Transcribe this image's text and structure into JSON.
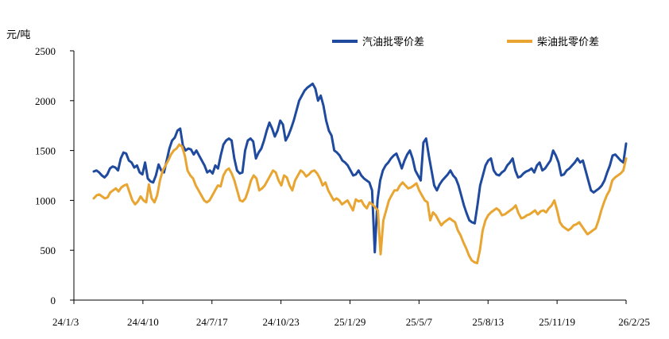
{
  "chart_data": {
    "type": "line",
    "unit_label": "元/吨",
    "y_ticks": [
      "0",
      "500",
      "1000",
      "1500",
      "2000",
      "2500"
    ],
    "ylim": [
      0,
      2500
    ],
    "x_ticks": [
      "24/1/3",
      "24/4/10",
      "24/7/17",
      "24/10/23",
      "25/1/29",
      "25/5/7",
      "25/8/13",
      "25/11/19",
      "26/2/25"
    ],
    "legend_position": "top-right",
    "grid": false,
    "series": [
      {
        "name": "汽油批零价差",
        "color": "#1F4A9E",
        "values": [
          1290,
          1300,
          1280,
          1250,
          1230,
          1260,
          1320,
          1340,
          1330,
          1300,
          1420,
          1480,
          1470,
          1400,
          1380,
          1330,
          1350,
          1280,
          1260,
          1380,
          1220,
          1190,
          1180,
          1250,
          1360,
          1300,
          1280,
          1400,
          1520,
          1600,
          1630,
          1700,
          1720,
          1550,
          1500,
          1520,
          1510,
          1460,
          1500,
          1450,
          1400,
          1350,
          1280,
          1300,
          1270,
          1350,
          1320,
          1450,
          1560,
          1600,
          1620,
          1600,
          1420,
          1300,
          1270,
          1280,
          1500,
          1600,
          1620,
          1590,
          1420,
          1480,
          1520,
          1600,
          1700,
          1780,
          1720,
          1640,
          1700,
          1800,
          1760,
          1600,
          1650,
          1720,
          1800,
          1900,
          2000,
          2050,
          2100,
          2130,
          2150,
          2170,
          2120,
          2000,
          2050,
          1950,
          1800,
          1700,
          1650,
          1500,
          1480,
          1450,
          1400,
          1380,
          1350,
          1300,
          1250,
          1260,
          1300,
          1250,
          1220,
          1200,
          1180,
          1100,
          480,
          1000,
          1200,
          1300,
          1350,
          1380,
          1420,
          1450,
          1470,
          1400,
          1320,
          1400,
          1460,
          1500,
          1420,
          1300,
          1250,
          1200,
          1580,
          1620,
          1450,
          1300,
          1150,
          1100,
          1160,
          1200,
          1230,
          1260,
          1300,
          1250,
          1220,
          1150,
          1050,
          950,
          870,
          800,
          780,
          770,
          950,
          1150,
          1250,
          1350,
          1400,
          1420,
          1300,
          1260,
          1250,
          1280,
          1300,
          1350,
          1380,
          1420,
          1300,
          1230,
          1240,
          1270,
          1290,
          1300,
          1320,
          1280,
          1350,
          1380,
          1300,
          1320,
          1360,
          1400,
          1500,
          1450,
          1380,
          1250,
          1260,
          1300,
          1320,
          1350,
          1380,
          1420,
          1380,
          1400,
          1300,
          1200,
          1100,
          1080,
          1100,
          1120,
          1150,
          1200,
          1280,
          1350,
          1450,
          1460,
          1430,
          1400,
          1380,
          1570
        ]
      },
      {
        "name": "柴油批零价差",
        "color": "#E8A532",
        "values": [
          1020,
          1050,
          1060,
          1040,
          1020,
          1030,
          1080,
          1100,
          1120,
          1090,
          1130,
          1150,
          1160,
          1080,
          1000,
          960,
          990,
          1040,
          1000,
          980,
          1160,
          1020,
          980,
          1050,
          1200,
          1300,
          1350,
          1400,
          1460,
          1500,
          1520,
          1560,
          1540,
          1450,
          1300,
          1250,
          1220,
          1150,
          1100,
          1050,
          1000,
          980,
          1000,
          1050,
          1100,
          1150,
          1140,
          1250,
          1300,
          1320,
          1270,
          1200,
          1100,
          1000,
          990,
          1020,
          1100,
          1200,
          1250,
          1220,
          1100,
          1120,
          1150,
          1200,
          1250,
          1300,
          1280,
          1200,
          1150,
          1250,
          1230,
          1150,
          1100,
          1200,
          1250,
          1300,
          1280,
          1240,
          1260,
          1290,
          1300,
          1270,
          1220,
          1150,
          1180,
          1100,
          1050,
          1000,
          1020,
          1000,
          960,
          980,
          1000,
          950,
          900,
          1010,
          990,
          1000,
          950,
          920,
          980,
          960,
          930,
          900,
          460,
          800,
          900,
          1000,
          1050,
          1100,
          1100,
          1150,
          1180,
          1150,
          1120,
          1130,
          1150,
          1170,
          1100,
          1050,
          1000,
          980,
          800,
          880,
          850,
          800,
          750,
          780,
          800,
          820,
          800,
          780,
          700,
          650,
          580,
          520,
          450,
          400,
          380,
          370,
          500,
          700,
          800,
          850,
          880,
          900,
          920,
          900,
          850,
          860,
          880,
          900,
          920,
          950,
          870,
          820,
          830,
          850,
          860,
          880,
          900,
          860,
          890,
          900,
          880,
          920,
          950,
          1000,
          900,
          780,
          740,
          720,
          700,
          720,
          750,
          760,
          780,
          740,
          700,
          660,
          680,
          700,
          720,
          800,
          900,
          980,
          1050,
          1100,
          1200,
          1230,
          1250,
          1270,
          1300,
          1420
        ]
      }
    ]
  }
}
